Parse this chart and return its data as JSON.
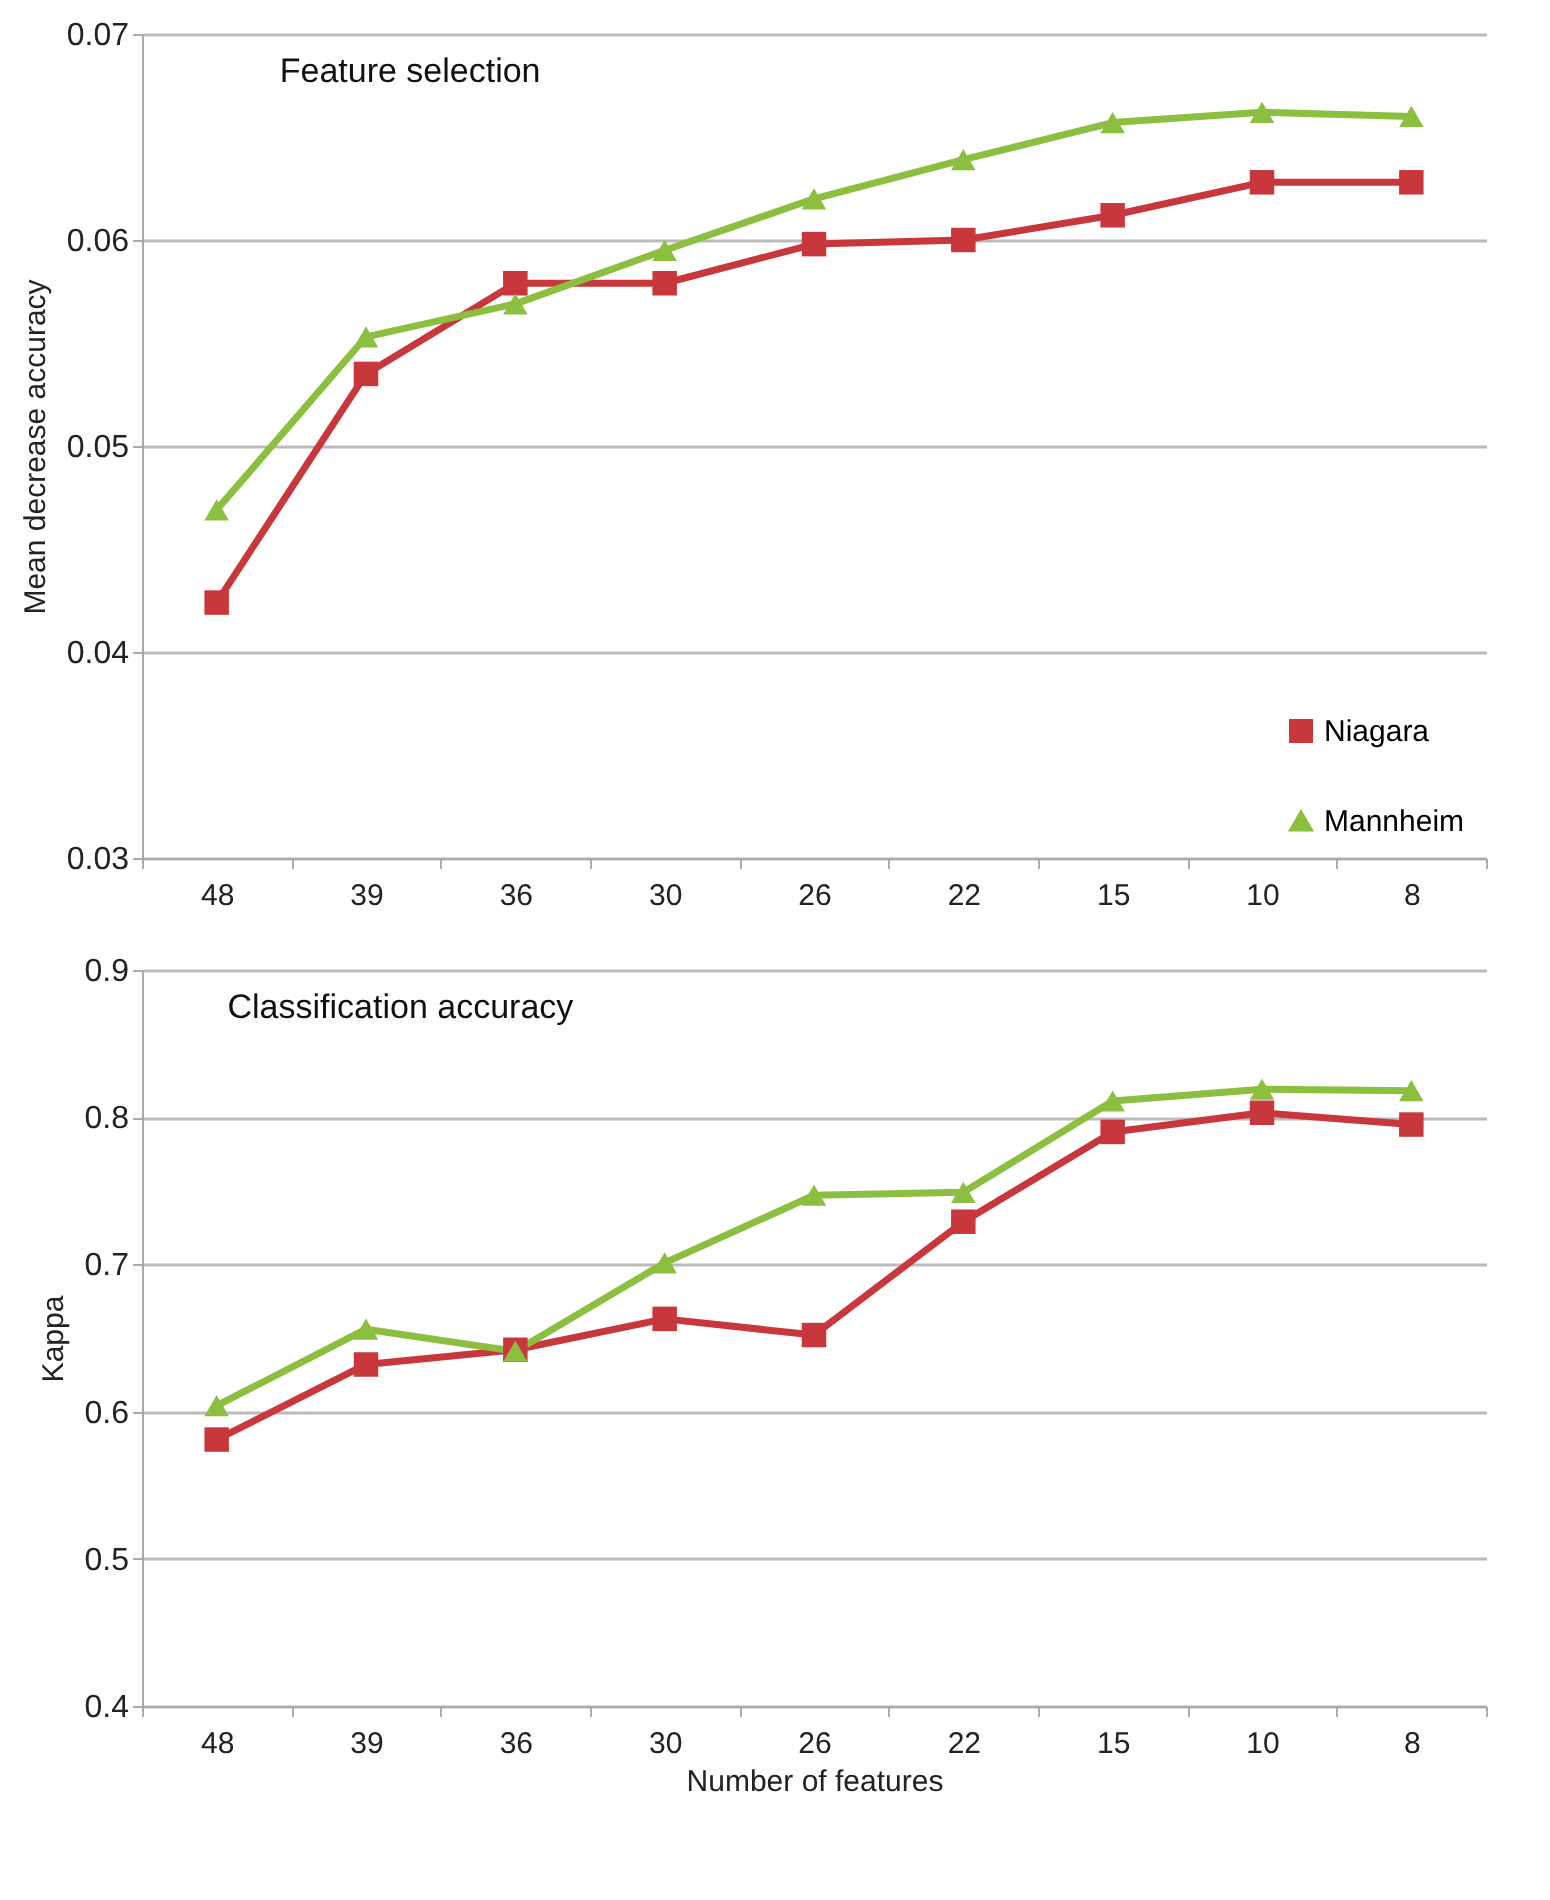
{
  "chart_data": [
    {
      "type": "line",
      "title": "Feature selection",
      "ylabel": "Mean decrease accuracy",
      "categories": [
        "48",
        "39",
        "36",
        "30",
        "26",
        "22",
        "15",
        "10",
        "8"
      ],
      "series": [
        {
          "name": "Niagara",
          "color": "#c8373c",
          "marker": "square",
          "values": [
            0.0424,
            0.0535,
            0.0579,
            0.0579,
            0.0598,
            0.06,
            0.0612,
            0.0628,
            0.0628
          ]
        },
        {
          "name": "Mannheim",
          "color": "#8cbf3f",
          "marker": "triangle",
          "values": [
            0.0469,
            0.0553,
            0.0569,
            0.0595,
            0.062,
            0.0639,
            0.0657,
            0.0662,
            0.066
          ]
        }
      ],
      "ylim": [
        0.03,
        0.07
      ],
      "yticks": [
        0.03,
        0.04,
        0.05,
        0.06,
        0.07
      ],
      "grid": "y",
      "legend": "bottom right"
    },
    {
      "type": "line",
      "title": "Classification accuracy",
      "xlabel": "Number of features",
      "ylabel": "Kappa",
      "categories": [
        "48",
        "39",
        "36",
        "30",
        "26",
        "22",
        "15",
        "10",
        "8"
      ],
      "series": [
        {
          "color": "#c8373c",
          "marker": "square",
          "values": [
            0.581,
            0.632,
            0.642,
            0.663,
            0.652,
            0.729,
            0.79,
            0.803,
            0.795
          ]
        },
        {
          "color": "#8cbf3f",
          "marker": "triangle",
          "values": [
            0.604,
            0.656,
            0.641,
            0.701,
            0.747,
            0.749,
            0.811,
            0.819,
            0.818
          ]
        }
      ],
      "ylim": [
        0.4,
        0.9
      ],
      "yticks": [
        0.4,
        0.5,
        0.6,
        0.7,
        0.8,
        0.9
      ],
      "grid": "y",
      "legend": false
    }
  ]
}
